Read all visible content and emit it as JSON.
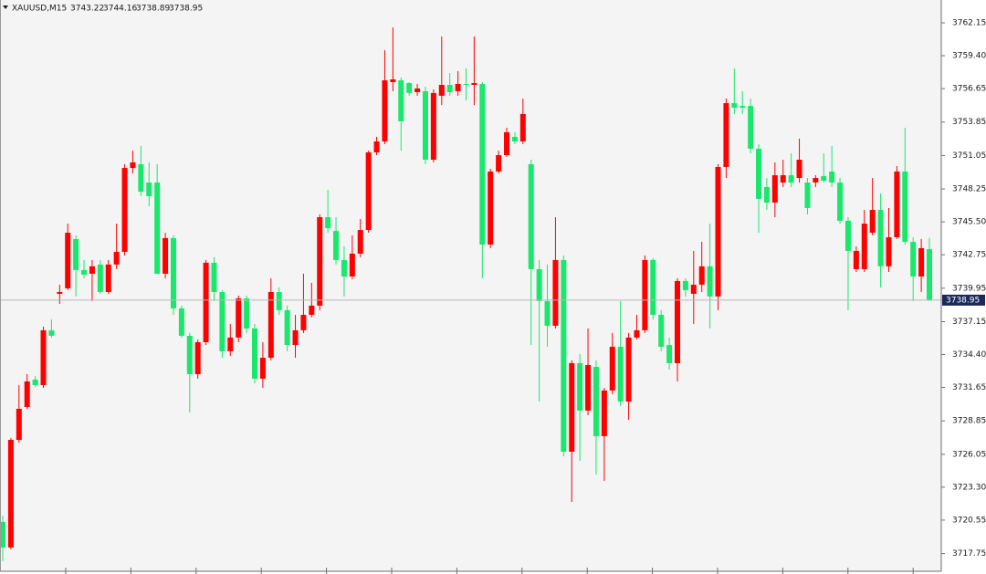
{
  "chart_data": {
    "type": "candlestick",
    "title": "XAUUSD,M15",
    "up_color": "#ff0000",
    "down_color": "#19e86c",
    "ylim": [
      3716.04,
      3764.06
    ],
    "yticks": [
      3762.15,
      {
        "value": 3759.4,
        "label": "3759.40"
      },
      3756.65,
      3753.85,
      3751.05,
      3748.25,
      {
        "value": 3745.5,
        "label": "3745.50"
      },
      3742.75,
      3739.95,
      3737.15,
      {
        "value": 3734.4,
        "label": "3734.40"
      },
      3731.65,
      3728.85,
      3726.05,
      {
        "value": 3723.3,
        "label": "3723.30"
      },
      3720.55,
      3717.75
    ],
    "open": [
      3720.4,
      3718.26,
      3727.26,
      3730.01,
      3732.3,
      3731.84,
      3736.43,
      3739.48,
      3739.94,
      3744.06,
      3741.47,
      3741.16,
      3741.93,
      3739.63,
      3741.93,
      3742.99,
      3750.01,
      3750.32,
      3748.79,
      3748.79,
      3741.16,
      3744.14,
      3738.26,
      3735.97,
      3732.76,
      3735.43,
      3742.08,
      3739.63,
      3734.67,
      3735.82,
      3739.1,
      3736.58,
      3732.38,
      3734.13,
      3739.63,
      3738.11,
      3735.2,
      3736.43,
      3737.72,
      3738.49,
      3745.89,
      3744.74,
      3742.31,
      3740.93,
      3742.84,
      3744.82,
      3751.31,
      3752.23,
      3757.19,
      3757.34,
      3757.11,
      3756.35,
      3756.43,
      3750.7,
      3756.05,
      3756.96,
      3756.43,
      3757.04,
      3756.96,
      3757.04,
      3743.6,
      3749.71,
      3751.08,
      3752.61,
      3752.23,
      3750.32,
      3741.54,
      3738.87,
      3736.81,
      3742.31,
      3726.27,
      3733.68,
      3729.71,
      3733.37,
      3727.57,
      3731.39,
      3735.05,
      3730.47,
      3735.82,
      3736.43,
      3742.31,
      3737.72,
      3735.2,
      3733.68,
      3740.55,
      3739.48,
      3740.24,
      3741.78,
      3739.26,
      3750.09,
      3755.43,
      3755.2,
      3755.2,
      3751.62,
      3748.41,
      3747.11,
      3748.79,
      3749.4,
      3749.17,
      3748.79,
      3748.79,
      3749.33,
      3749.71,
      3748.79,
      3745.59,
      3741.54,
      3741.54,
      3744.59,
      3746.5,
      3741.78,
      3744.21,
      3749.71,
      3743.83,
      3740.93,
      3743.22
    ],
    "high": [
      3720.93,
      3727.41,
      3731.84,
      3732.76,
      3732.61,
      3736.73,
      3737.34,
      3740.24,
      3745.35,
      3744.37,
      3742.31,
      3742.31,
      3742.31,
      3742.31,
      3745.35,
      3750.32,
      3751.46,
      3751.85,
      3750.47,
      3750.32,
      3744.59,
      3744.37,
      3738.49,
      3736.2,
      3735.66,
      3742.31,
      3742.54,
      3739.79,
      3736.96,
      3739.33,
      3739.33,
      3736.96,
      3735.43,
      3740.78,
      3740.02,
      3738.49,
      3737.72,
      3741.16,
      3740.4,
      3746.12,
      3748.18,
      3745.89,
      3743.45,
      3744.37,
      3745.74,
      3751.46,
      3752.61,
      3759.86,
      3761.77,
      3757.57,
      3757.19,
      3757.04,
      3756.81,
      3756.58,
      3761.01,
      3757.95,
      3758.11,
      3758.33,
      3761.01,
      3757.19,
      3749.94,
      3751.46,
      3753.37,
      3753.0,
      3755.81,
      3750.7,
      3742.31,
      3741.93,
      3745.89,
      3742.69,
      3733.9,
      3734.44,
      3736.58,
      3733.9,
      3731.61,
      3736.2,
      3738.87,
      3736.2,
      3737.72,
      3742.69,
      3742.46,
      3738.11,
      3735.82,
      3740.78,
      3740.78,
      3743.07,
      3743.83,
      3745.35,
      3750.32,
      3755.81,
      3758.33,
      3756.43,
      3755.81,
      3752.0,
      3749.17,
      3750.47,
      3750.7,
      3751.23,
      3752.46,
      3749.17,
      3749.4,
      3751.23,
      3751.85,
      3749.17,
      3745.89,
      3743.45,
      3746.5,
      3749.17,
      3747.88,
      3746.66,
      3750.17,
      3753.37,
      3744.21,
      3744.06,
      3744.16
    ],
    "low": [
      3717.11,
      3718.11,
      3727.03,
      3729.86,
      3731.69,
      3731.61,
      3735.82,
      3738.64,
      3739.79,
      3739.26,
      3740.78,
      3738.87,
      3739.48,
      3739.48,
      3741.55,
      3742.69,
      3749.55,
      3747.65,
      3746.8,
      3741.16,
      3740.78,
      3737.72,
      3735.82,
      3729.56,
      3732.38,
      3735.2,
      3738.87,
      3734.13,
      3734.29,
      3735.43,
      3736.2,
      3731.99,
      3731.61,
      3733.9,
      3737.72,
      3734.67,
      3734.13,
      3736.2,
      3737.5,
      3738.11,
      3744.59,
      3741.93,
      3739.26,
      3740.7,
      3742.54,
      3744.59,
      3751.08,
      3752.0,
      3756.43,
      3751.46,
      3756.05,
      3756.05,
      3750.32,
      3750.47,
      3755.27,
      3756.05,
      3756.05,
      3755.66,
      3755.27,
      3740.78,
      3743.3,
      3749.55,
      3750.93,
      3752.0,
      3752.0,
      3735.2,
      3730.47,
      3735.05,
      3736.58,
      3725.89,
      3722.07,
      3725.51,
      3729.33,
      3724.36,
      3723.83,
      3731.08,
      3730.09,
      3728.95,
      3735.66,
      3736.2,
      3737.34,
      3734.67,
      3733.14,
      3732.15,
      3739.26,
      3736.96,
      3739.63,
      3736.58,
      3738.11,
      3749.17,
      3754.52,
      3754.52,
      3751.23,
      3744.59,
      3746.5,
      3745.89,
      3748.41,
      3748.41,
      3748.79,
      3746.12,
      3748.41,
      3748.79,
      3748.41,
      3745.35,
      3738.11,
      3741.31,
      3741.31,
      3744.37,
      3740.02,
      3741.31,
      3744.06,
      3743.6,
      3738.87,
      3739.63,
      3738.89
    ],
    "close": [
      3718.26,
      3727.26,
      3729.86,
      3732.15,
      3731.84,
      3736.43,
      3735.97,
      3739.63,
      3744.59,
      3741.47,
      3741.08,
      3741.78,
      3739.63,
      3741.93,
      3742.99,
      3750.01,
      3750.47,
      3748.03,
      3747.65,
      3741.16,
      3744.14,
      3738.26,
      3735.97,
      3732.76,
      3735.43,
      3742.08,
      3739.63,
      3734.67,
      3735.82,
      3739.1,
      3736.58,
      3732.38,
      3734.13,
      3739.63,
      3738.11,
      3735.2,
      3736.43,
      3737.72,
      3738.49,
      3745.89,
      3744.97,
      3742.31,
      3740.93,
      3742.84,
      3744.82,
      3751.31,
      3752.23,
      3757.34,
      3757.42,
      3753.91,
      3756.28,
      3756.66,
      3750.7,
      3756.28,
      3756.96,
      3756.35,
      3757.04,
      3756.96,
      3757.11,
      3743.6,
      3749.71,
      3751.08,
      3753.0,
      3752.23,
      3754.52,
      3741.54,
      3738.87,
      3736.81,
      3742.31,
      3726.27,
      3733.68,
      3729.71,
      3733.52,
      3727.57,
      3731.39,
      3735.05,
      3730.47,
      3735.82,
      3736.43,
      3742.31,
      3737.72,
      3735.05,
      3733.68,
      3740.55,
      3739.79,
      3740.24,
      3741.78,
      3739.26,
      3750.09,
      3755.43,
      3755.05,
      3755.05,
      3751.62,
      3747.42,
      3747.11,
      3749.4,
      3749.4,
      3748.79,
      3750.7,
      3746.66,
      3749.17,
      3748.94,
      3748.79,
      3745.59,
      3743.07,
      3743.07,
      3745.35,
      3746.5,
      3741.78,
      3744.21,
      3749.71,
      3743.83,
      3740.93,
      3743.3,
      3738.95
    ]
  }
}
